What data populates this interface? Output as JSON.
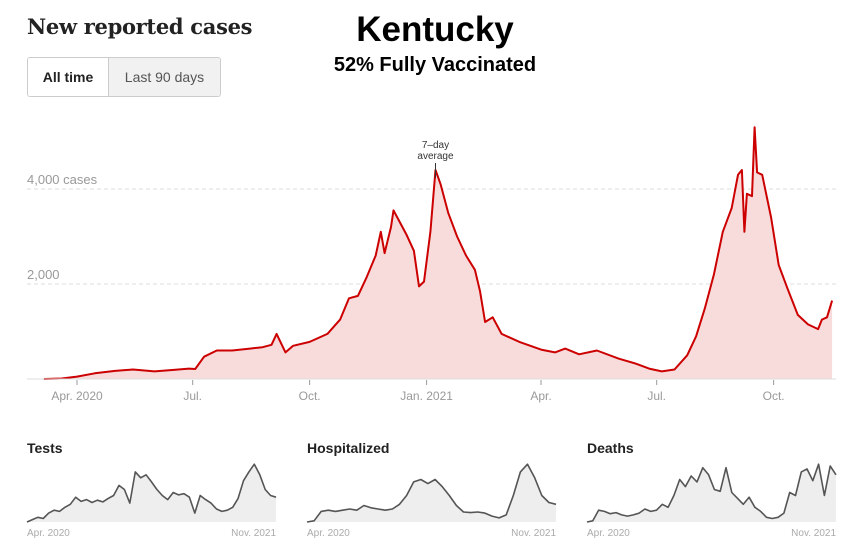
{
  "header": {
    "title": "New reported cases",
    "state": "Kentucky",
    "vaccination": "52% Fully Vaccinated"
  },
  "toggle": {
    "options": [
      "All time",
      "Last 90 days"
    ],
    "selected": "All time"
  },
  "colors": {
    "line": "#cc0000",
    "fill": "#f8dcdc",
    "small_line": "#555555",
    "small_fill": "#eeeeee"
  },
  "chart_data": [
    {
      "type": "area",
      "title": "New reported cases",
      "series_name": "7-day average",
      "annotation": {
        "text": [
          "7–day",
          "average"
        ],
        "x": "2021-01-08"
      },
      "ylabel": "cases",
      "ylim": [
        0,
        5600
      ],
      "y_ticks": [
        {
          "value": 2000,
          "label": "2,000"
        },
        {
          "value": 4000,
          "label": "4,000 cases"
        }
      ],
      "x_ticks": [
        {
          "date": "2020-04-01",
          "label": "Apr. 2020"
        },
        {
          "date": "2020-07-01",
          "label": "Jul."
        },
        {
          "date": "2020-10-01",
          "label": "Oct."
        },
        {
          "date": "2021-01-01",
          "label": "Jan. 2021"
        },
        {
          "date": "2021-04-01",
          "label": "Apr."
        },
        {
          "date": "2021-07-01",
          "label": "Jul."
        },
        {
          "date": "2021-10-01",
          "label": "Oct."
        }
      ],
      "grid": true,
      "x_range": [
        "2020-03-06",
        "2021-11-16"
      ],
      "points": [
        [
          "2020-03-06",
          0
        ],
        [
          "2020-03-20",
          10
        ],
        [
          "2020-04-01",
          50
        ],
        [
          "2020-04-15",
          120
        ],
        [
          "2020-05-01",
          170
        ],
        [
          "2020-05-15",
          200
        ],
        [
          "2020-06-01",
          160
        ],
        [
          "2020-06-15",
          190
        ],
        [
          "2020-06-28",
          220
        ],
        [
          "2020-07-03",
          210
        ],
        [
          "2020-07-10",
          470
        ],
        [
          "2020-07-20",
          600
        ],
        [
          "2020-08-01",
          600
        ],
        [
          "2020-08-15",
          640
        ],
        [
          "2020-08-25",
          670
        ],
        [
          "2020-09-01",
          720
        ],
        [
          "2020-09-05",
          950
        ],
        [
          "2020-09-12",
          560
        ],
        [
          "2020-09-18",
          700
        ],
        [
          "2020-10-01",
          780
        ],
        [
          "2020-10-15",
          950
        ],
        [
          "2020-10-25",
          1250
        ],
        [
          "2020-11-01",
          1700
        ],
        [
          "2020-11-08",
          1750
        ],
        [
          "2020-11-15",
          2150
        ],
        [
          "2020-11-22",
          2600
        ],
        [
          "2020-11-26",
          3100
        ],
        [
          "2020-11-29",
          2650
        ],
        [
          "2020-12-04",
          3200
        ],
        [
          "2020-12-06",
          3550
        ],
        [
          "2020-12-10",
          3350
        ],
        [
          "2020-12-16",
          3050
        ],
        [
          "2020-12-22",
          2700
        ],
        [
          "2020-12-26",
          1950
        ],
        [
          "2020-12-30",
          2050
        ],
        [
          "2021-01-04",
          3100
        ],
        [
          "2021-01-08",
          4400
        ],
        [
          "2021-01-12",
          4100
        ],
        [
          "2021-01-18",
          3500
        ],
        [
          "2021-01-25",
          3000
        ],
        [
          "2021-02-01",
          2600
        ],
        [
          "2021-02-08",
          2300
        ],
        [
          "2021-02-12",
          1850
        ],
        [
          "2021-02-16",
          1200
        ],
        [
          "2021-02-22",
          1300
        ],
        [
          "2021-03-01",
          950
        ],
        [
          "2021-03-15",
          780
        ],
        [
          "2021-04-01",
          620
        ],
        [
          "2021-04-12",
          560
        ],
        [
          "2021-04-20",
          640
        ],
        [
          "2021-05-01",
          520
        ],
        [
          "2021-05-15",
          600
        ],
        [
          "2021-06-01",
          430
        ],
        [
          "2021-06-15",
          320
        ],
        [
          "2021-06-25",
          220
        ],
        [
          "2021-07-05",
          160
        ],
        [
          "2021-07-15",
          200
        ],
        [
          "2021-07-25",
          500
        ],
        [
          "2021-08-01",
          900
        ],
        [
          "2021-08-08",
          1500
        ],
        [
          "2021-08-15",
          2200
        ],
        [
          "2021-08-22",
          3100
        ],
        [
          "2021-08-29",
          3600
        ],
        [
          "2021-09-03",
          4300
        ],
        [
          "2021-09-06",
          4400
        ],
        [
          "2021-09-08",
          3100
        ],
        [
          "2021-09-10",
          3900
        ],
        [
          "2021-09-14",
          3850
        ],
        [
          "2021-09-16",
          5300
        ],
        [
          "2021-09-18",
          4350
        ],
        [
          "2021-09-22",
          4300
        ],
        [
          "2021-09-29",
          3400
        ],
        [
          "2021-10-05",
          2400
        ],
        [
          "2021-10-12",
          1900
        ],
        [
          "2021-10-20",
          1350
        ],
        [
          "2021-10-28",
          1150
        ],
        [
          "2021-11-05",
          1050
        ],
        [
          "2021-11-08",
          1250
        ],
        [
          "2021-11-12",
          1300
        ],
        [
          "2021-11-16",
          1650
        ]
      ]
    },
    {
      "type": "area",
      "title": "Tests",
      "x_ticks": [
        {
          "label": "Apr. 2020"
        },
        {
          "label": "Nov. 2021"
        }
      ],
      "values": [
        0,
        0.04,
        0.08,
        0.06,
        0.15,
        0.2,
        0.18,
        0.25,
        0.3,
        0.42,
        0.35,
        0.38,
        0.33,
        0.37,
        0.34,
        0.4,
        0.45,
        0.62,
        0.55,
        0.32,
        0.85,
        0.75,
        0.8,
        0.68,
        0.55,
        0.45,
        0.38,
        0.5,
        0.46,
        0.48,
        0.42,
        0.15,
        0.45,
        0.38,
        0.32,
        0.22,
        0.18,
        0.2,
        0.25,
        0.4,
        0.7,
        0.85,
        0.98,
        0.8,
        0.55,
        0.45,
        0.42
      ]
    },
    {
      "type": "area",
      "title": "Hospitalized",
      "x_ticks": [
        {
          "label": "Apr. 2020"
        },
        {
          "label": "Nov. 2021"
        }
      ],
      "values": [
        0,
        0.02,
        0.18,
        0.2,
        0.18,
        0.2,
        0.22,
        0.2,
        0.28,
        0.24,
        0.22,
        0.2,
        0.22,
        0.3,
        0.45,
        0.68,
        0.72,
        0.65,
        0.72,
        0.6,
        0.45,
        0.28,
        0.17,
        0.16,
        0.17,
        0.15,
        0.1,
        0.07,
        0.12,
        0.45,
        0.85,
        0.98,
        0.75,
        0.45,
        0.33,
        0.3
      ]
    },
    {
      "type": "area",
      "title": "Deaths",
      "x_ticks": [
        {
          "label": "Apr. 2020"
        },
        {
          "label": "Nov. 2021"
        }
      ],
      "values": [
        0,
        0.02,
        0.2,
        0.18,
        0.14,
        0.16,
        0.12,
        0.1,
        0.12,
        0.15,
        0.22,
        0.18,
        0.2,
        0.3,
        0.25,
        0.45,
        0.72,
        0.6,
        0.78,
        0.68,
        0.92,
        0.8,
        0.55,
        0.52,
        0.92,
        0.5,
        0.4,
        0.3,
        0.42,
        0.25,
        0.18,
        0.08,
        0.06,
        0.08,
        0.15,
        0.5,
        0.45,
        0.85,
        0.9,
        0.7,
        0.98,
        0.45,
        0.95,
        0.8
      ]
    }
  ]
}
